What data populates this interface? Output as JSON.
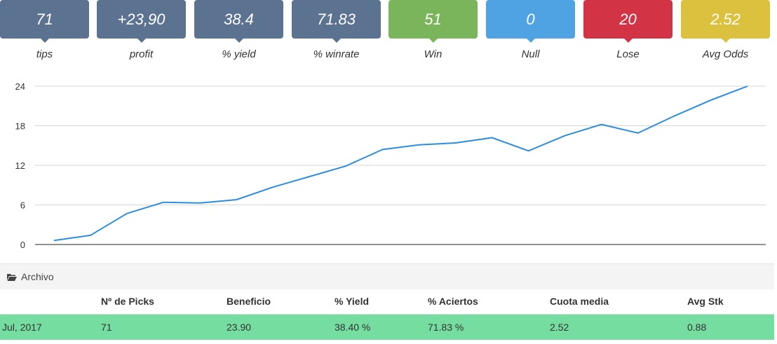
{
  "stats": [
    {
      "value": "71",
      "label": "tips",
      "color": "#5b7390"
    },
    {
      "value": "+23,90",
      "label": "profit",
      "color": "#5b7390"
    },
    {
      "value": "38.4",
      "label": "% yield",
      "color": "#5b7390"
    },
    {
      "value": "71.83",
      "label": "% winrate",
      "color": "#5b7390"
    },
    {
      "value": "51",
      "label": "Win",
      "color": "#7ab55c"
    },
    {
      "value": "0",
      "label": "Null",
      "color": "#4fa3e3"
    },
    {
      "value": "20",
      "label": "Lose",
      "color": "#d23446"
    },
    {
      "value": "2.52",
      "label": "Avg Odds",
      "color": "#dbc13e"
    }
  ],
  "chart_data": {
    "type": "line",
    "title": "",
    "xlabel": "",
    "ylabel": "",
    "ylim": [
      0,
      24
    ],
    "yticks": [
      "0",
      "6",
      "12",
      "18",
      "24"
    ],
    "grid": true,
    "line_color": "#2b8de0",
    "series": [
      {
        "values": [
          0.6,
          1.4,
          4.7,
          6.4,
          6.3,
          6.8,
          8.7,
          10.3,
          11.9,
          14.4,
          15.1,
          15.4,
          16.2,
          14.2,
          16.5,
          18.2,
          16.9,
          19.5,
          21.9,
          24.0
        ]
      }
    ]
  },
  "archivo": {
    "label": "Archivo"
  },
  "table": {
    "headers": [
      "",
      "Nº de Picks",
      "Beneficio",
      "% Yield",
      "% Aciertos",
      "Cuota media",
      "Avg Stk"
    ],
    "rows": [
      [
        "Jul, 2017",
        "71",
        "23.90",
        "38.40 %",
        "71.83 %",
        "2.52",
        "0.88"
      ]
    ],
    "row_color": "#75dd9f"
  }
}
